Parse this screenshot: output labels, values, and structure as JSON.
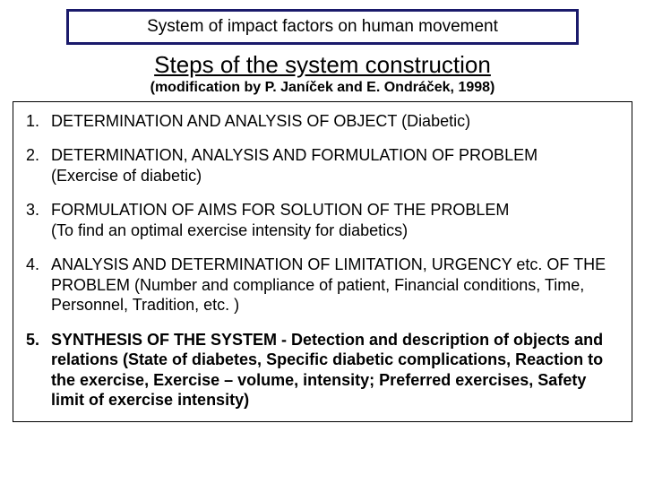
{
  "colors": {
    "title_border": "#1a1a6b",
    "background": "#ffffff",
    "text": "#000000",
    "content_border": "#000000"
  },
  "typography": {
    "title_fontsize": 19,
    "subtitle_fontsize": 26,
    "mod_fontsize": 16,
    "body_fontsize": 18
  },
  "title": "System of impact factors on human movement",
  "subtitle": "Steps of the system construction",
  "modification": "(modification by P. Janíček and E. Ondráček, 1998)",
  "steps": [
    {
      "num": "1.",
      "text": "DETERMINATION AND ANALYSIS OF OBJECT (Diabetic)",
      "bold": false
    },
    {
      "num": "2.",
      "text": "DETERMINATION, ANALYSIS AND FORMULATION OF PROBLEM",
      "detail": "(Exercise of diabetic)",
      "bold": false
    },
    {
      "num": "3.",
      "text": "FORMULATION OF AIMS FOR SOLUTION OF THE PROBLEM",
      "detail": "(To find an optimal exercise intensity for diabetics)",
      "bold": false
    },
    {
      "num": "4.",
      "text": "ANALYSIS AND DETERMINATION OF LIMITATION, URGENCY etc. OF THE PROBLEM (Number and compliance of patient, Financial conditions, Time, Personnel, Tradition, etc. )",
      "bold": false
    },
    {
      "num": "5.",
      "bold_lead": "SYNTHESIS OF THE SYSTEM - Detection and description of objects and relations ",
      "bold_tail": "(State of diabetes, Specific diabetic complications, Reaction to the exercise, Exercise – volume, intensity; Preferred exercises, Safety limit of exercise intensity)",
      "bold": true
    }
  ]
}
